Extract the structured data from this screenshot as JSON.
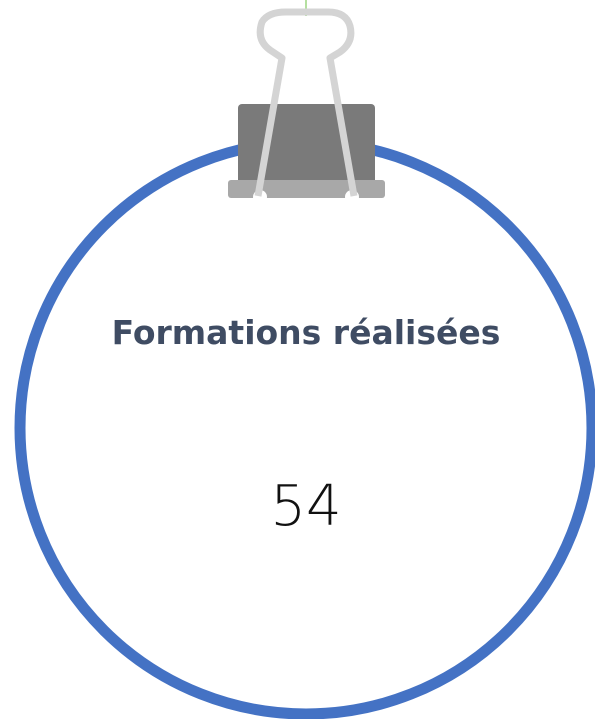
{
  "card": {
    "title": "Formations réalisées",
    "value": "54"
  }
}
